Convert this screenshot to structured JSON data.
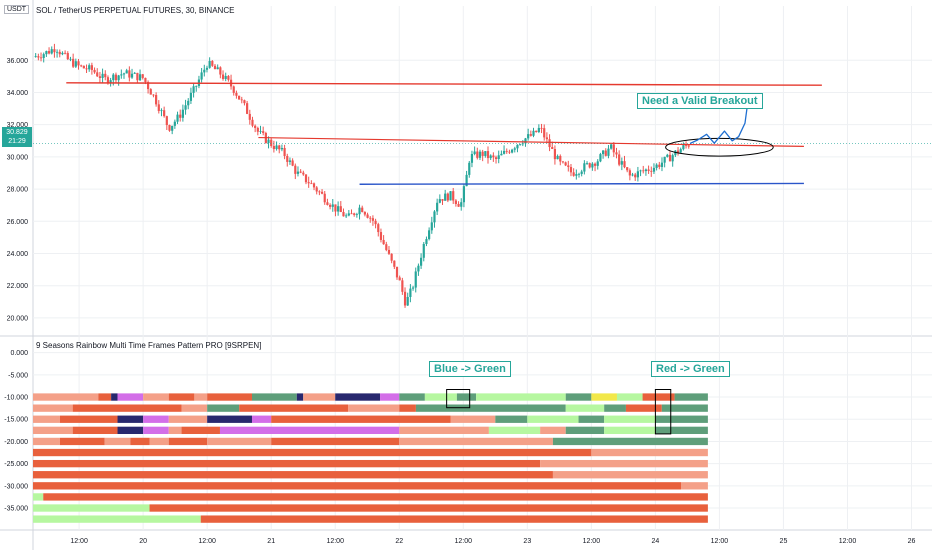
{
  "header": {
    "unit": "USDT",
    "title": "SOL / TetherUS PERPETUAL FUTURES, 30, BINANCE",
    "last_price": "30.829",
    "countdown": "21:29"
  },
  "indicator": {
    "title": "9 Seasons Rainbow Multi Time Frames Pattern PRO [9SRPEN]"
  },
  "annotations": {
    "breakout": "Need a Valid Breakout",
    "blue_green": "Blue -> Green",
    "red_green": "Red -> Green"
  },
  "colors": {
    "up": "#26a69a",
    "down": "#ef5350",
    "red_line": "#e5392e",
    "blue_line": "#2a55c9",
    "grid": "#eef0f3",
    "axis_text": "#131722",
    "proj": "#1f6fd1"
  },
  "chart_data": [
    {
      "type": "candlestick",
      "y_ticks": [
        "36.000",
        "34.000",
        "32.000",
        "30.000",
        "28.000",
        "26.000",
        "24.000",
        "22.000",
        "20.000"
      ],
      "y_values": [
        36,
        34,
        32,
        30,
        28,
        26,
        24,
        22,
        20
      ],
      "ylim": [
        19,
        38.5
      ],
      "x_ticks": [
        {
          "label": "12:00",
          "t": 1.5
        },
        {
          "label": "20",
          "t": 2
        },
        {
          "label": "12:00",
          "t": 2.5
        },
        {
          "label": "21",
          "t": 3
        },
        {
          "label": "12:00",
          "t": 3.5
        },
        {
          "label": "22",
          "t": 4
        },
        {
          "label": "12:00",
          "t": 4.5
        },
        {
          "label": "23",
          "t": 5
        },
        {
          "label": "12:00",
          "t": 5.5
        },
        {
          "label": "24",
          "t": 6
        },
        {
          "label": "12:00",
          "t": 6.5
        },
        {
          "label": "25",
          "t": 7
        },
        {
          "label": "12:00",
          "t": 7.5
        },
        {
          "label": "26",
          "t": 8
        }
      ],
      "xlim": [
        1.14,
        8.16
      ],
      "price_path": [
        [
          1.14,
          36.2
        ],
        [
          1.25,
          36.5
        ],
        [
          1.32,
          36.8
        ],
        [
          1.4,
          36.1
        ],
        [
          1.5,
          35.6
        ],
        [
          1.6,
          35.4
        ],
        [
          1.7,
          34.8
        ],
        [
          1.85,
          35.2
        ],
        [
          2.0,
          34.9
        ],
        [
          2.1,
          33.5
        ],
        [
          2.2,
          31.8
        ],
        [
          2.28,
          32.5
        ],
        [
          2.4,
          34.2
        ],
        [
          2.5,
          35.8
        ],
        [
          2.6,
          35.2
        ],
        [
          2.7,
          34.3
        ],
        [
          2.8,
          33.0
        ],
        [
          2.9,
          31.5
        ],
        [
          3.0,
          30.8
        ],
        [
          3.1,
          30.2
        ],
        [
          3.2,
          29.0
        ],
        [
          3.3,
          28.4
        ],
        [
          3.4,
          27.6
        ],
        [
          3.5,
          26.8
        ],
        [
          3.6,
          26.2
        ],
        [
          3.7,
          26.9
        ],
        [
          3.8,
          26.0
        ],
        [
          3.9,
          24.2
        ],
        [
          4.0,
          22.3
        ],
        [
          4.05,
          20.9
        ],
        [
          4.1,
          21.8
        ],
        [
          4.2,
          24.8
        ],
        [
          4.3,
          27.4
        ],
        [
          4.4,
          27.6
        ],
        [
          4.48,
          27.0
        ],
        [
          4.52,
          28.5
        ],
        [
          4.55,
          30.0
        ],
        [
          4.65,
          30.2
        ],
        [
          4.75,
          29.8
        ],
        [
          4.85,
          30.4
        ],
        [
          4.95,
          31.0
        ],
        [
          5.05,
          31.4
        ],
        [
          5.1,
          31.8
        ],
        [
          5.15,
          31.0
        ],
        [
          5.25,
          29.6
        ],
        [
          5.35,
          29.0
        ],
        [
          5.45,
          29.4
        ],
        [
          5.55,
          29.8
        ],
        [
          5.65,
          30.6
        ],
        [
          5.72,
          29.7
        ],
        [
          5.8,
          28.8
        ],
        [
          5.9,
          29.1
        ],
        [
          6.0,
          29.4
        ],
        [
          6.1,
          29.9
        ],
        [
          6.18,
          30.4
        ],
        [
          6.27,
          30.829
        ]
      ],
      "red_line_upper": [
        [
          1.4,
          34.6
        ],
        [
          7.3,
          34.45
        ]
      ],
      "red_line_lower": [
        [
          2.9,
          31.2
        ],
        [
          7.16,
          30.65
        ]
      ],
      "blue_line": [
        [
          3.69,
          28.3
        ],
        [
          7.16,
          28.35
        ]
      ],
      "ellipse": {
        "cx_t": 6.5,
        "cy_v": 30.6,
        "rx_t": 0.42,
        "ry_v": 0.55
      },
      "projection": [
        [
          6.27,
          30.829
        ],
        [
          6.33,
          31.05
        ],
        [
          6.4,
          31.4
        ],
        [
          6.46,
          30.85
        ],
        [
          6.54,
          31.6
        ],
        [
          6.6,
          31.0
        ],
        [
          6.65,
          31.25
        ],
        [
          6.7,
          32.1
        ],
        [
          6.73,
          33.9
        ]
      ]
    },
    {
      "type": "heatmap",
      "y_ticks": [
        "0.000",
        "-5.000",
        "-10.000",
        "-15.000",
        "-20.000",
        "-25.000",
        "-30.000",
        "-35.000"
      ],
      "y_values": [
        0,
        -5,
        -10,
        -15,
        -20,
        -25,
        -30,
        -35
      ],
      "ylim": [
        -39.5,
        1.5
      ],
      "end_t": 6.41,
      "color_key": {
        "O": "#e8603c",
        "S": "#f4a088",
        "G": "#5e9e7a",
        "L": "#b6f7a0",
        "P": "#d36ee8",
        "N": "#28286e",
        "Y": "#f2e84a"
      },
      "rows": [
        {
          "level": -10,
          "segments": [
            [
              "S",
              1.14
            ],
            [
              "O",
              1.65
            ],
            [
              "N",
              1.75
            ],
            [
              "P",
              1.8
            ],
            [
              "S",
              2.0
            ],
            [
              "O",
              2.2
            ],
            [
              "S",
              2.4
            ],
            [
              "O",
              2.5
            ],
            [
              "G",
              2.85
            ],
            [
              "N",
              3.2
            ],
            [
              "S",
              3.25
            ],
            [
              "N",
              3.5
            ],
            [
              "P",
              3.85
            ],
            [
              "G",
              4.0
            ],
            [
              "L",
              4.2
            ],
            [
              "G",
              4.45
            ],
            [
              "L",
              4.6
            ],
            [
              "G",
              5.3
            ],
            [
              "Y",
              5.5
            ],
            [
              "L",
              5.7
            ],
            [
              "O",
              5.9
            ],
            [
              "G",
              6.15
            ]
          ]
        },
        {
          "level": -12.5,
          "segments": [
            [
              "S",
              1.14
            ],
            [
              "O",
              1.45
            ],
            [
              "S",
              2.3
            ],
            [
              "G",
              2.5
            ],
            [
              "O",
              2.75
            ],
            [
              "S",
              3.6
            ],
            [
              "O",
              4.0
            ],
            [
              "G",
              4.13
            ],
            [
              "L",
              5.3
            ],
            [
              "G",
              5.6
            ],
            [
              "O",
              5.77
            ],
            [
              "G",
              6.05
            ]
          ]
        },
        {
          "level": -15,
          "segments": [
            [
              "S",
              1.14
            ],
            [
              "O",
              1.35
            ],
            [
              "N",
              1.8
            ],
            [
              "P",
              2.0
            ],
            [
              "S",
              2.2
            ],
            [
              "N",
              2.5
            ],
            [
              "P",
              2.85
            ],
            [
              "O",
              3.0
            ],
            [
              "S",
              4.4
            ],
            [
              "G",
              4.75
            ],
            [
              "L",
              5.0
            ],
            [
              "G",
              5.4
            ],
            [
              "L",
              5.6
            ],
            [
              "G",
              6.0
            ]
          ]
        },
        {
          "level": -17.5,
          "segments": [
            [
              "S",
              1.14
            ],
            [
              "O",
              1.45
            ],
            [
              "N",
              1.8
            ],
            [
              "P",
              2.0
            ],
            [
              "S",
              2.2
            ],
            [
              "O",
              2.3
            ],
            [
              "P",
              2.6
            ],
            [
              "S",
              4.0
            ],
            [
              "L",
              4.7
            ],
            [
              "S",
              5.1
            ],
            [
              "G",
              5.3
            ],
            [
              "L",
              5.6
            ],
            [
              "G",
              6.0
            ]
          ]
        },
        {
          "level": -20,
          "segments": [
            [
              "S",
              1.14
            ],
            [
              "O",
              1.35
            ],
            [
              "S",
              1.7
            ],
            [
              "O",
              1.9
            ],
            [
              "S",
              2.05
            ],
            [
              "O",
              2.2
            ],
            [
              "S",
              2.5
            ],
            [
              "O",
              3.0
            ],
            [
              "S",
              4.0
            ],
            [
              "G",
              5.2
            ]
          ]
        },
        {
          "level": -22.5,
          "segments": [
            [
              "O",
              1.14
            ],
            [
              "S",
              5.5
            ]
          ]
        },
        {
          "level": -25,
          "segments": [
            [
              "O",
              1.14
            ],
            [
              "S",
              5.1
            ]
          ]
        },
        {
          "level": -27.5,
          "segments": [
            [
              "O",
              1.14
            ],
            [
              "S",
              5.2
            ]
          ]
        },
        {
          "level": -30,
          "segments": [
            [
              "O",
              1.14
            ],
            [
              "S",
              6.2
            ]
          ]
        },
        {
          "level": -32.5,
          "segments": [
            [
              "L",
              1.14
            ],
            [
              "O",
              1.22
            ]
          ]
        },
        {
          "level": -35,
          "segments": [
            [
              "L",
              1.14
            ],
            [
              "O",
              2.05
            ]
          ]
        },
        {
          "level": -37.5,
          "segments": [
            [
              "L",
              1.14
            ],
            [
              "O",
              2.45
            ]
          ]
        }
      ],
      "markers": [
        {
          "t0": 4.37,
          "t1": 4.55,
          "v0": -8.3,
          "v1": -12.4
        },
        {
          "t0": 6.0,
          "t1": 6.12,
          "v0": -8.3,
          "v1": -18.3
        }
      ]
    }
  ]
}
